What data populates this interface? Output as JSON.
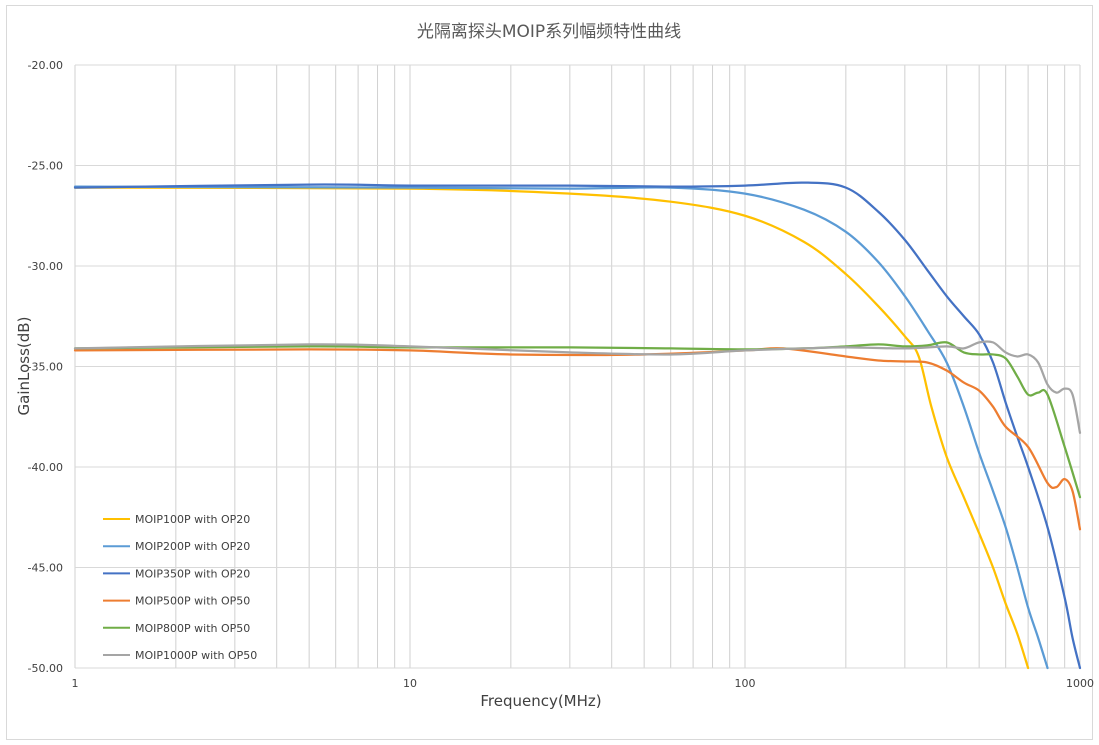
{
  "chart_data": {
    "type": "line",
    "title": "光隔离探头MOIP系列幅频特性曲线",
    "xlabel": "Frequency(MHz)",
    "ylabel": "GainLoss(dB)",
    "xscale": "log",
    "xlim": [
      1,
      1000
    ],
    "ylim": [
      -50,
      -20
    ],
    "xticks": [
      "1",
      "10",
      "100",
      "1000"
    ],
    "yticks": [
      "-20.00",
      "-25.00",
      "-30.00",
      "-35.00",
      "-40.00",
      "-45.00",
      "-50.00"
    ],
    "grid": true,
    "legend_position": "bottom-left",
    "series": [
      {
        "name": "MOIP100P with OP20",
        "color": "#FFC000",
        "x": [
          1,
          10,
          30,
          60,
          100,
          150,
          200,
          250,
          300,
          330,
          360,
          400,
          450,
          500,
          550,
          600,
          650,
          700
        ],
        "y": [
          -26.1,
          -26.15,
          -26.4,
          -26.8,
          -27.5,
          -28.8,
          -30.4,
          -32.0,
          -33.5,
          -34.5,
          -37.0,
          -39.5,
          -41.5,
          -43.3,
          -45.0,
          -46.8,
          -48.3,
          -50.0
        ]
      },
      {
        "name": "MOIP200P with OP20",
        "color": "#5B9BD5",
        "x": [
          1,
          10,
          30,
          60,
          100,
          150,
          200,
          250,
          300,
          350,
          400,
          450,
          500,
          550,
          600,
          650,
          700,
          750,
          800
        ],
        "y": [
          -26.05,
          -26.1,
          -26.15,
          -26.1,
          -26.4,
          -27.2,
          -28.3,
          -29.8,
          -31.5,
          -33.2,
          -34.8,
          -37.0,
          -39.3,
          -41.2,
          -43.0,
          -45.0,
          -47.0,
          -48.5,
          -50.0
        ]
      },
      {
        "name": "MOIP350P with OP20",
        "color": "#4472C4",
        "x": [
          1,
          5,
          10,
          30,
          60,
          100,
          150,
          200,
          250,
          300,
          350,
          400,
          450,
          500,
          550,
          600,
          650,
          700,
          800,
          900,
          950,
          1000
        ],
        "y": [
          -26.1,
          -25.95,
          -26.0,
          -26.0,
          -26.05,
          -26.0,
          -25.85,
          -26.1,
          -27.3,
          -28.7,
          -30.2,
          -31.5,
          -32.5,
          -33.4,
          -34.8,
          -36.8,
          -38.5,
          -40.0,
          -43.0,
          -46.5,
          -48.5,
          -50.0
        ]
      },
      {
        "name": "MOIP500P with OP50",
        "color": "#ED7D31",
        "x": [
          1,
          5,
          10,
          20,
          50,
          100,
          130,
          200,
          250,
          300,
          350,
          400,
          450,
          500,
          550,
          600,
          700,
          800,
          850,
          900,
          950,
          1000
        ],
        "y": [
          -34.2,
          -34.15,
          -34.2,
          -34.4,
          -34.4,
          -34.2,
          -34.1,
          -34.5,
          -34.7,
          -34.75,
          -34.8,
          -35.2,
          -35.8,
          -36.2,
          -37.0,
          -38.0,
          -39.0,
          -40.8,
          -41.0,
          -40.6,
          -41.2,
          -43.1
        ]
      },
      {
        "name": "MOIP800P with OP50",
        "color": "#70AD47",
        "x": [
          1,
          5,
          10,
          30,
          60,
          100,
          150,
          200,
          250,
          300,
          350,
          400,
          450,
          500,
          550,
          600,
          650,
          700,
          750,
          800,
          900,
          1000
        ],
        "y": [
          -34.1,
          -34.0,
          -34.05,
          -34.05,
          -34.1,
          -34.15,
          -34.1,
          -34.0,
          -33.9,
          -34.0,
          -33.95,
          -33.8,
          -34.3,
          -34.4,
          -34.4,
          -34.6,
          -35.5,
          -36.4,
          -36.3,
          -36.4,
          -39.0,
          -41.5
        ]
      },
      {
        "name": "MOIP1000P with OP50",
        "color": "#A5A5A5",
        "x": [
          1,
          5,
          10,
          30,
          60,
          100,
          150,
          200,
          300,
          400,
          450,
          500,
          550,
          600,
          650,
          700,
          750,
          800,
          850,
          900,
          950,
          1000
        ],
        "y": [
          -34.1,
          -33.9,
          -34.0,
          -34.3,
          -34.4,
          -34.2,
          -34.1,
          -34.05,
          -34.1,
          -34.0,
          -34.1,
          -33.8,
          -33.8,
          -34.3,
          -34.5,
          -34.4,
          -34.8,
          -35.9,
          -36.3,
          -36.1,
          -36.4,
          -38.3
        ]
      }
    ]
  }
}
